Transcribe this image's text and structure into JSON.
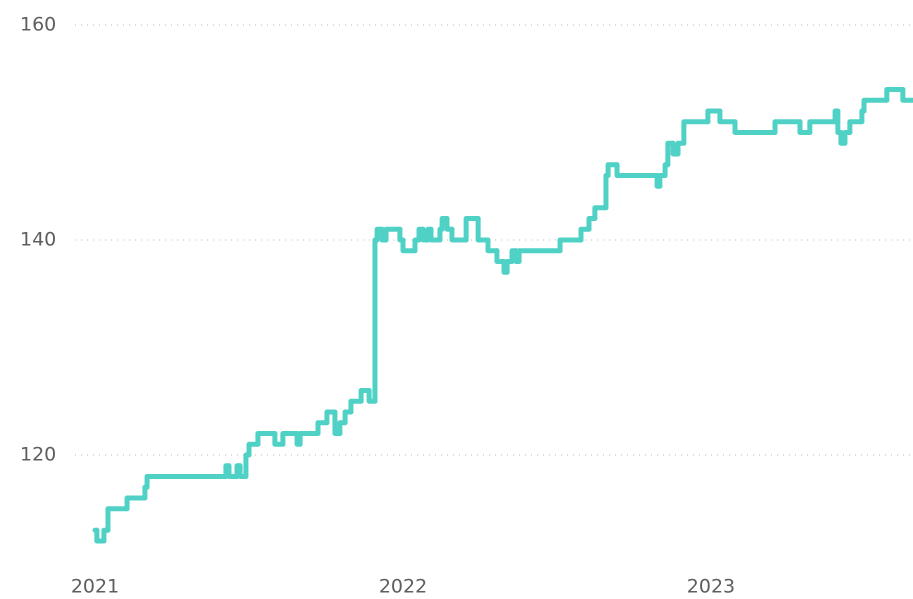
{
  "chart_data": {
    "type": "line",
    "step": "post",
    "x": [
      2021.0,
      2021.006,
      2021.029,
      2021.042,
      2021.104,
      2021.162,
      2021.169,
      2021.425,
      2021.435,
      2021.461,
      2021.471,
      2021.49,
      2021.5,
      2021.529,
      2021.584,
      2021.61,
      2021.656,
      2021.666,
      2021.724,
      2021.753,
      2021.779,
      2021.795,
      2021.812,
      2021.831,
      2021.864,
      2021.89,
      2021.909,
      2021.916,
      2021.932,
      2021.945,
      2021.99,
      2022.0,
      2022.039,
      2022.052,
      2022.065,
      2022.081,
      2022.091,
      2022.12,
      2022.127,
      2022.143,
      2022.159,
      2022.205,
      2022.244,
      2022.276,
      2022.305,
      2022.328,
      2022.338,
      2022.354,
      2022.367,
      2022.377,
      2022.51,
      2022.578,
      2022.604,
      2022.623,
      2022.659,
      2022.666,
      2022.695,
      2022.825,
      2022.834,
      2022.851,
      2022.86,
      2022.877,
      2022.893,
      2022.912,
      2022.99,
      2023.029,
      2023.078,
      2023.208,
      2023.289,
      2023.321,
      2023.403,
      2023.412,
      2023.422,
      2023.435,
      2023.451,
      2023.49,
      2023.497,
      2023.571,
      2023.623
    ],
    "series": [
      {
        "color": "#4fd1c5",
        "values": [
          113,
          112,
          113,
          115,
          116,
          117,
          118,
          119,
          118,
          119,
          118,
          120,
          121,
          122,
          121,
          122,
          121,
          122,
          123,
          124,
          122,
          123,
          124,
          125,
          126,
          125,
          140,
          141,
          140,
          141,
          140,
          139,
          140,
          141,
          140,
          141,
          140,
          141,
          142,
          141,
          140,
          142,
          140,
          139,
          138,
          137,
          138,
          139,
          138,
          139,
          140,
          141,
          142,
          143,
          146,
          147,
          146,
          145,
          146,
          147,
          149,
          148,
          149,
          151,
          152,
          151,
          150,
          151,
          150,
          151,
          152,
          150,
          149,
          150,
          151,
          152,
          153,
          154,
          153
        ]
      }
    ],
    "xlim": [
      2020.935,
      2023.656
    ],
    "xticks": [
      2021,
      2022,
      2023
    ],
    "ylim": [
      112,
      160
    ],
    "yticks": [
      120,
      140,
      160
    ],
    "grid": true
  }
}
